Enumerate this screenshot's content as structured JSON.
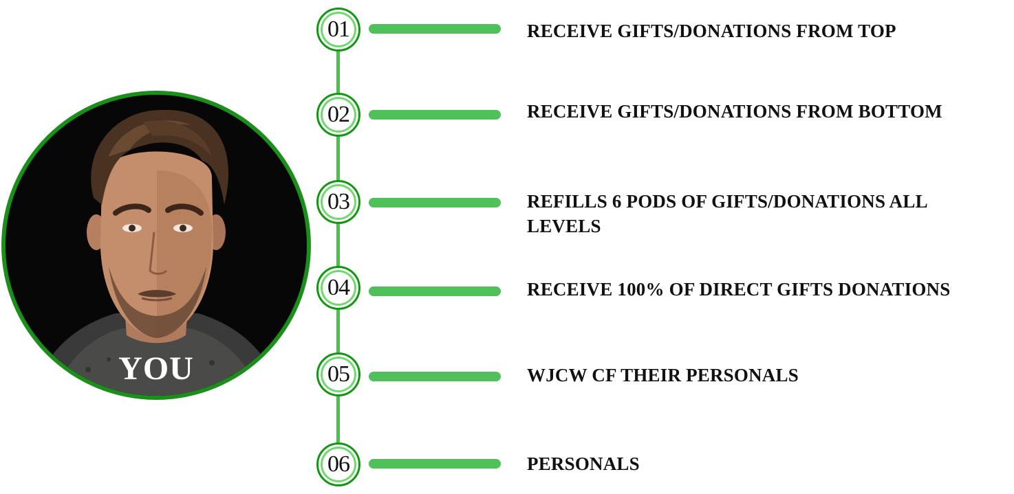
{
  "avatar": {
    "label": "YOU",
    "ring_color": "#1a8f1a"
  },
  "accent_colors": {
    "spine": "#4cc04c",
    "bar": "#50c05a",
    "node_border": "#119811"
  },
  "steps": [
    {
      "number": "01",
      "text": "RECEIVE GIFTS/DONATIONS FROM TOP"
    },
    {
      "number": "02",
      "text": "RECEIVE GIFTS/DONATIONS FROM BOTTOM"
    },
    {
      "number": "03",
      "text": "REFILLS 6 PODS OF GIFTS/DONATIONS ALL LEVELS"
    },
    {
      "number": "04",
      "text": "RECEIVE 100% OF DIRECT GIFTS DONATIONS"
    },
    {
      "number": "05",
      "text": "WJCW CF THEIR PERSONALS"
    },
    {
      "number": "06",
      "text": "PERSONALS"
    }
  ]
}
